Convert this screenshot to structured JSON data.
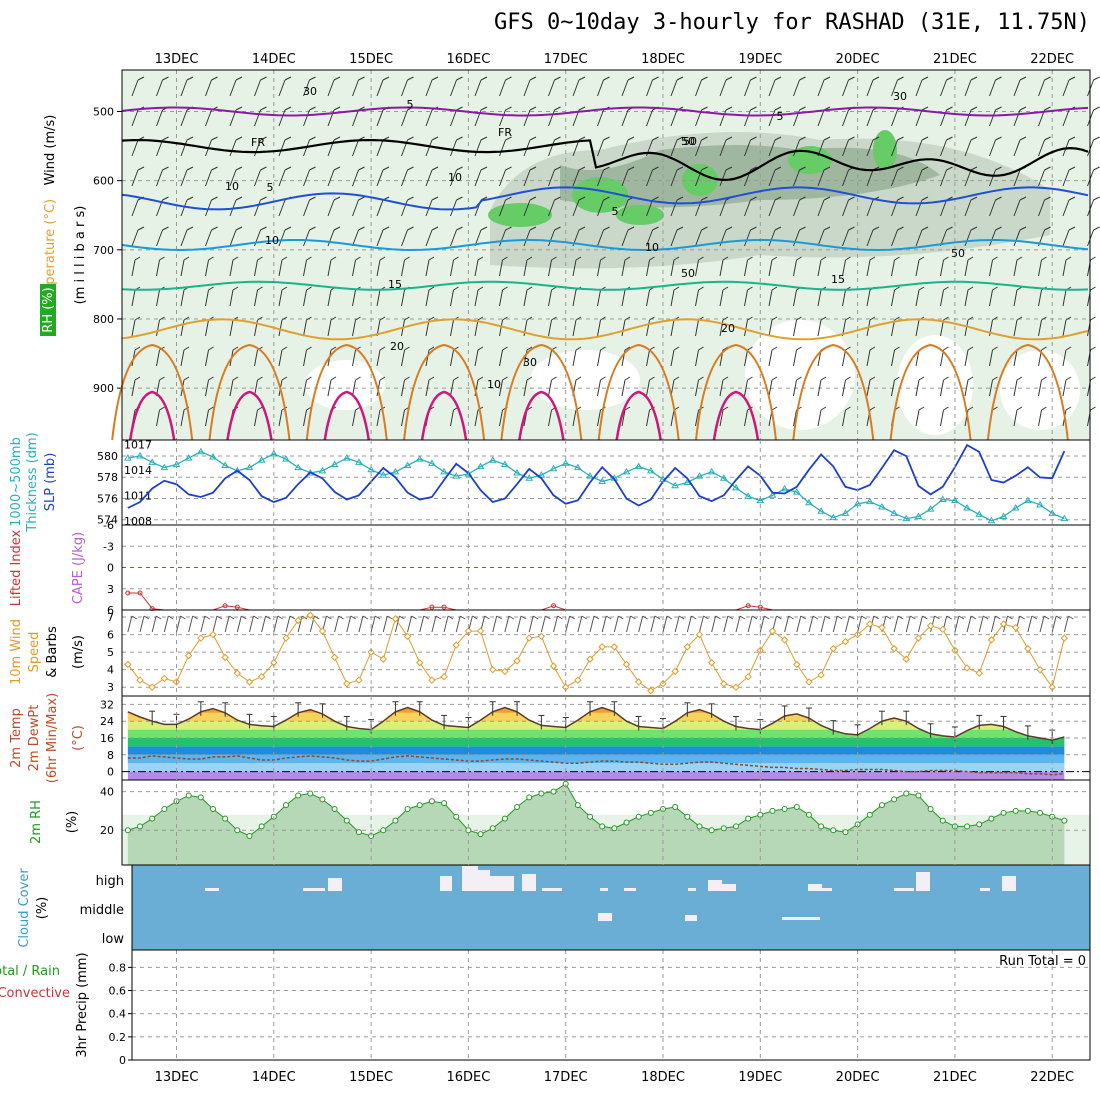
{
  "title": "GFS 0~10day 3-hourly for RASHAD (31E, 11.75N)",
  "colors": {
    "thickness": "#2ab0b8",
    "slp": "#1b3fcf",
    "lifted": "#cc3333",
    "cape": "#b85bd6",
    "wind10": "#e39a2a",
    "rh2m": "#229922",
    "cloud": "#6aaed6",
    "temp_purple": "#8a1aa6",
    "temp_blue": "#1f4fd8",
    "temp_lightblue": "#1a9ad6",
    "temp_green": "#18b58a",
    "temp_orange": "#e0a030",
    "temp_darkorange": "#d97b20",
    "temp_magenta": "#d0167a"
  },
  "chart_data": {
    "type": "meteogram",
    "title": "GFS 0~10day 3-hourly for RASHAD (31E, 11.75N)",
    "x_dates": [
      "13DEC",
      "14DEC",
      "15DEC",
      "16DEC",
      "17DEC",
      "18DEC",
      "19DEC",
      "20DEC",
      "21DEC",
      "22DEC"
    ],
    "x_range_days": [
      -0.5,
      9.15
    ],
    "panels": [
      {
        "id": "upper",
        "labels": [
          "Wind (m/s)",
          "Temperature (°C)",
          "RH (%)",
          "(m i l l i b a r s)"
        ],
        "yticks": [
          "500",
          "600",
          "700",
          "800",
          "900"
        ],
        "ylim": [
          440,
          975
        ],
        "contour_labels": [
          "5",
          "FR",
          "FR",
          "5",
          "10",
          "5",
          "10",
          "15",
          "15",
          "10",
          "20",
          "20",
          "10",
          "30",
          "50",
          "50",
          "50",
          "30",
          "30",
          "50",
          "5",
          "10"
        ],
        "isotherms": [
          {
            "label": "-5",
            "pressure": 500
          },
          {
            "label": "FR",
            "pressure": 550
          },
          {
            "label": "5",
            "pressure": 630
          },
          {
            "label": "10",
            "pressure": 693
          },
          {
            "label": "15",
            "pressure": 752
          },
          {
            "label": "20",
            "pressure": 815
          }
        ]
      },
      {
        "id": "thickness_slp",
        "labels": [
          "1000~500mb",
          "Thickness (dm)",
          "SLP (mb)"
        ],
        "left_ticks": [
          "574",
          "576",
          "578",
          "580"
        ],
        "right_ticks": [
          "1008",
          "1011",
          "1014",
          "1017"
        ],
        "thickness_range": [
          573.5,
          581.5
        ],
        "slp_range": [
          1007.5,
          1017.5
        ],
        "thickness": [
          579.8,
          580.0,
          579.4,
          578.9,
          579.2,
          579.8,
          580.4,
          579.9,
          579.1,
          578.6,
          578.9,
          579.6,
          580.2,
          579.7,
          578.9,
          578.4,
          578.6,
          579.2,
          579.8,
          579.4,
          578.7,
          578.2,
          578.5,
          579.1,
          579.7,
          579.3,
          578.5,
          578.1,
          578.3,
          579.0,
          579.6,
          579.2,
          578.4,
          577.9,
          578.2,
          578.8,
          579.3,
          578.9,
          578.1,
          577.6,
          577.9,
          578.5,
          579.0,
          578.6,
          577.8,
          577.2,
          577.5,
          578.1,
          578.5,
          577.9,
          577.0,
          576.2,
          575.8,
          576.3,
          576.9,
          576.6,
          575.6,
          574.8,
          574.2,
          574.6,
          575.5,
          575.7,
          575.2,
          574.6,
          574.1,
          574.3,
          575.0,
          575.9,
          575.8,
          575.1,
          574.5,
          573.9,
          574.3,
          575.1,
          575.8,
          575.4,
          574.6,
          574.1
        ],
        "slp": [
          1009.5,
          1010.2,
          1011.8,
          1012.7,
          1012.3,
          1011.1,
          1010.8,
          1011.3,
          1013.0,
          1013.9,
          1012.8,
          1010.9,
          1010.2,
          1010.7,
          1012.3,
          1013.7,
          1013.0,
          1011.4,
          1010.5,
          1011.0,
          1012.6,
          1014.2,
          1013.1,
          1011.3,
          1010.5,
          1010.8,
          1012.8,
          1014.7,
          1013.6,
          1011.6,
          1010.2,
          1010.6,
          1012.3,
          1014.1,
          1013.0,
          1011.0,
          1010.0,
          1010.4,
          1012.5,
          1014.3,
          1012.9,
          1010.6,
          1009.8,
          1010.5,
          1012.6,
          1014.2,
          1013.0,
          1010.9,
          1010.3,
          1011.0,
          1012.8,
          1014.4,
          1013.3,
          1011.3,
          1011.2,
          1012.0,
          1014.0,
          1015.8,
          1014.4,
          1012.0,
          1011.6,
          1012.2,
          1014.2,
          1016.3,
          1015.6,
          1012.1,
          1011.1,
          1012.0,
          1014.3,
          1016.9,
          1016.1,
          1012.8,
          1012.5,
          1013.3,
          1014.3,
          1013.1,
          1013.0,
          1016.2
        ]
      },
      {
        "id": "lifted_cape",
        "labels": [
          "Lifted Index",
          "CAPE (J/kg)"
        ],
        "yticks": [
          "-6",
          "-3",
          "0",
          "3",
          "6"
        ],
        "ylim": [
          -6,
          6
        ],
        "lifted_index": [
          3.6,
          3.6,
          5.8,
          6.0,
          6.0,
          6.0,
          6.0,
          6.0,
          5.4,
          5.6,
          6.0,
          6.0,
          6.0,
          6.0,
          6.0,
          6.0,
          6.0,
          6.0,
          6.0,
          6.0,
          6.0,
          6.0,
          6.0,
          6.0,
          6.0,
          5.6,
          5.6,
          6.0,
          6.0,
          6.0,
          6.0,
          6.0,
          6.0,
          6.0,
          6.0,
          5.4,
          6.0,
          6.0,
          6.0,
          6.0,
          6.0,
          6.0,
          6.0,
          6.0,
          6.0,
          6.0,
          6.0,
          6.0,
          6.0,
          6.0,
          6.0,
          5.4,
          5.6,
          6.0,
          6.0,
          6.0,
          6.0,
          6.0,
          6.0,
          6.0,
          6.0,
          6.0,
          6.0,
          6.0,
          6.0,
          6.0,
          6.0,
          6.0,
          6.0,
          6.0,
          6.0,
          6.0,
          6.0,
          6.0,
          6.0,
          6.0,
          6.0,
          6.0
        ]
      },
      {
        "id": "wind10",
        "labels": [
          "10m Wind",
          "Speed",
          "& Barbs",
          "(m/s)"
        ],
        "yticks": [
          "3",
          "4",
          "5",
          "6",
          "7"
        ],
        "ylim": [
          2.5,
          7.4
        ],
        "speed": [
          4.3,
          3.4,
          3.0,
          3.5,
          3.3,
          4.8,
          5.8,
          6.0,
          4.7,
          3.8,
          3.3,
          3.6,
          4.4,
          5.8,
          6.8,
          7.1,
          6.2,
          4.7,
          3.2,
          3.4,
          5.0,
          4.6,
          6.9,
          5.9,
          4.4,
          3.4,
          3.6,
          5.4,
          6.2,
          6.2,
          4.0,
          3.9,
          4.5,
          5.8,
          5.9,
          4.2,
          3.0,
          3.4,
          4.6,
          5.3,
          5.3,
          4.3,
          3.3,
          2.8,
          3.2,
          3.9,
          5.3,
          6.0,
          4.4,
          3.2,
          3.0,
          3.6,
          5.1,
          6.2,
          5.7,
          4.3,
          3.3,
          3.7,
          5.2,
          5.6,
          6.0,
          6.6,
          6.4,
          5.2,
          4.6,
          5.8,
          6.5,
          6.3,
          5.1,
          4.1,
          3.8,
          5.7,
          6.6,
          6.4,
          5.2,
          4.0,
          3.0,
          5.8
        ]
      },
      {
        "id": "temp_dew",
        "labels": [
          "2m Temp",
          "2m DewPt",
          "(6hr Min/Max)",
          "(°C)"
        ],
        "yticks": [
          "0",
          "8",
          "16",
          "24",
          "32"
        ],
        "ylim": [
          -4,
          36
        ],
        "temp": [
          28.5,
          26.0,
          24.0,
          22.5,
          22.5,
          25.0,
          28.5,
          30.0,
          28.0,
          24.5,
          22.5,
          21.8,
          21.5,
          24.5,
          28.0,
          29.5,
          27.5,
          24.0,
          21.5,
          20.5,
          20.0,
          24.0,
          28.5,
          30.5,
          28.5,
          24.5,
          22.0,
          21.5,
          21.0,
          24.5,
          28.5,
          30.5,
          28.5,
          24.5,
          22.0,
          21.5,
          21.0,
          24.5,
          28.5,
          30.5,
          28.5,
          24.0,
          21.5,
          21.0,
          20.5,
          24.0,
          28.0,
          29.5,
          27.5,
          24.0,
          21.5,
          20.5,
          20.0,
          23.0,
          26.5,
          27.5,
          25.5,
          22.0,
          19.5,
          18.0,
          17.5,
          20.5,
          24.0,
          25.5,
          24.0,
          20.5,
          18.0,
          17.0,
          16.5,
          19.5,
          22.0,
          22.5,
          21.5,
          19.0,
          17.0,
          16.0,
          15.0,
          16.5
        ],
        "dewpoint": [
          6.5,
          6.5,
          7.5,
          7.0,
          6.5,
          6.0,
          6.0,
          7.0,
          7.0,
          7.5,
          6.5,
          5.5,
          5.5,
          6.5,
          7.0,
          7.5,
          7.0,
          6.5,
          5.5,
          5.0,
          5.0,
          6.0,
          7.0,
          7.5,
          7.0,
          6.5,
          6.0,
          5.5,
          5.0,
          5.0,
          5.5,
          6.0,
          6.0,
          5.5,
          5.0,
          4.5,
          4.0,
          4.0,
          4.5,
          5.0,
          5.0,
          4.5,
          4.5,
          4.0,
          3.5,
          3.5,
          4.0,
          4.5,
          4.5,
          4.0,
          3.5,
          3.0,
          2.5,
          2.0,
          2.0,
          1.5,
          1.5,
          1.0,
          0.5,
          0.5,
          1.0,
          1.0,
          1.0,
          0.5,
          0.0,
          0.0,
          0.5,
          0.5,
          0.5,
          0.0,
          -0.5,
          -0.5,
          -0.5,
          -0.5,
          -1.0,
          -1.0,
          -1.5,
          -1.0
        ]
      },
      {
        "id": "rh2m",
        "labels": [
          "2m RH",
          "(%)"
        ],
        "yticks": [
          "20",
          "40"
        ],
        "ylim": [
          2,
          46
        ],
        "rh": [
          20,
          22,
          26,
          31,
          35,
          38,
          37,
          31,
          26,
          20,
          17,
          22,
          27,
          33,
          38,
          39,
          36,
          31,
          25,
          19,
          17,
          20,
          25,
          31,
          33,
          35,
          34,
          27,
          20,
          18,
          21,
          26,
          32,
          37,
          39,
          40,
          44,
          33,
          27,
          22,
          21,
          24,
          27,
          29,
          31,
          32,
          27,
          22,
          20,
          21,
          22,
          26,
          28,
          30,
          31,
          32,
          28,
          22,
          20,
          19,
          23,
          28,
          33,
          36,
          39,
          38,
          31,
          25,
          22,
          22,
          23,
          26,
          29,
          30,
          30,
          29,
          27,
          25
        ]
      },
      {
        "id": "cloud",
        "labels": [
          "Cloud Cover",
          "(%)"
        ],
        "yticks": [
          "high",
          "middle",
          "low"
        ]
      },
      {
        "id": "precip",
        "labels": [
          "Total / Rain",
          "Convective",
          "3hr Precip (mm)"
        ],
        "yticks": [
          "0",
          "0.2",
          "0.4",
          "0.6",
          "0.8"
        ],
        "ylim": [
          0,
          0.95
        ],
        "run_total": "Run Total = 0"
      }
    ]
  }
}
